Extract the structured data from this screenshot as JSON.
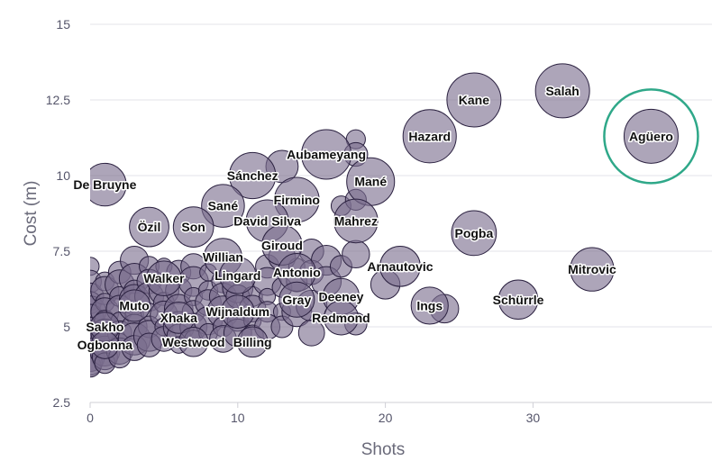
{
  "chart_data": {
    "type": "scatter",
    "title": "",
    "xlabel": "Shots",
    "ylabel": "Cost (m)",
    "xlim": [
      0,
      40
    ],
    "ylim": [
      2.5,
      15
    ],
    "x_ticks": [
      "0",
      "10",
      "20",
      "30"
    ],
    "y_ticks": [
      "2.5",
      "5",
      "7.5",
      "10",
      "12.5",
      "15"
    ],
    "grid": "horizontal",
    "highlight": "Agüero",
    "labeled_points": [
      {
        "name": "Agüero",
        "x": 38,
        "y": 11.3
      },
      {
        "name": "Salah",
        "x": 32,
        "y": 12.8
      },
      {
        "name": "Kane",
        "x": 26,
        "y": 12.5
      },
      {
        "name": "Hazard",
        "x": 23,
        "y": 11.3
      },
      {
        "name": "Aubameyang",
        "x": 16,
        "y": 10.7
      },
      {
        "name": "Mané",
        "x": 19,
        "y": 9.8
      },
      {
        "name": "Sánchez",
        "x": 11,
        "y": 10
      },
      {
        "name": "De Bruyne",
        "x": 1,
        "y": 9.7
      },
      {
        "name": "Sané",
        "x": 9,
        "y": 9
      },
      {
        "name": "Firmino",
        "x": 14,
        "y": 9.2
      },
      {
        "name": "David Silva",
        "x": 12,
        "y": 8.5
      },
      {
        "name": "Mahrez",
        "x": 18,
        "y": 8.5
      },
      {
        "name": "Özil",
        "x": 4,
        "y": 8.3
      },
      {
        "name": "Son",
        "x": 7,
        "y": 8.3
      },
      {
        "name": "Pogba",
        "x": 26,
        "y": 8.1
      },
      {
        "name": "Giroud",
        "x": 13,
        "y": 7.7
      },
      {
        "name": "Willian",
        "x": 9,
        "y": 7.3
      },
      {
        "name": "Arnautovic",
        "x": 21,
        "y": 7
      },
      {
        "name": "Mitrovic",
        "x": 34,
        "y": 6.9
      },
      {
        "name": "Antonio",
        "x": 14,
        "y": 6.8
      },
      {
        "name": "Lingard",
        "x": 10,
        "y": 6.7
      },
      {
        "name": "Walker",
        "x": 5,
        "y": 6.6
      },
      {
        "name": "Deeney",
        "x": 17,
        "y": 6
      },
      {
        "name": "Gray",
        "x": 14,
        "y": 5.9
      },
      {
        "name": "Schürrle",
        "x": 29,
        "y": 5.9
      },
      {
        "name": "Ings",
        "x": 23,
        "y": 5.7
      },
      {
        "name": "Muto",
        "x": 3,
        "y": 5.7
      },
      {
        "name": "Wijnaldum",
        "x": 10,
        "y": 5.5
      },
      {
        "name": "Xhaka",
        "x": 6,
        "y": 5.3
      },
      {
        "name": "Redmond",
        "x": 17,
        "y": 5.3
      },
      {
        "name": "Sakho",
        "x": 1,
        "y": 5
      },
      {
        "name": "Westwood",
        "x": 7,
        "y": 4.5
      },
      {
        "name": "Billing",
        "x": 11,
        "y": 4.5
      },
      {
        "name": "Ogbonna",
        "x": 1,
        "y": 4.4
      }
    ],
    "unlabeled_points": [
      [
        0,
        7
      ],
      [
        0,
        6.5
      ],
      [
        0,
        6
      ],
      [
        0,
        5.8
      ],
      [
        0,
        5.5
      ],
      [
        0,
        5.3
      ],
      [
        0,
        5
      ],
      [
        0,
        4.8
      ],
      [
        0,
        4.5
      ],
      [
        0,
        4.3
      ],
      [
        0,
        4
      ],
      [
        0,
        3.8
      ],
      [
        0,
        3.7
      ],
      [
        1,
        6.5
      ],
      [
        1,
        6.2
      ],
      [
        1,
        5.8
      ],
      [
        1,
        5.5
      ],
      [
        1,
        5.2
      ],
      [
        1,
        4.8
      ],
      [
        1,
        4.5
      ],
      [
        1,
        4.2
      ],
      [
        1,
        4
      ],
      [
        1,
        3.8
      ],
      [
        2,
        6.8
      ],
      [
        2,
        6.4
      ],
      [
        2,
        6
      ],
      [
        2,
        5.6
      ],
      [
        2,
        5.2
      ],
      [
        2,
        4.8
      ],
      [
        2,
        4.5
      ],
      [
        2,
        4.2
      ],
      [
        2,
        4
      ],
      [
        3,
        7.2
      ],
      [
        3,
        6.6
      ],
      [
        3,
        6.2
      ],
      [
        3,
        5.9
      ],
      [
        3,
        5.4
      ],
      [
        3,
        5
      ],
      [
        3,
        4.6
      ],
      [
        3,
        4.3
      ],
      [
        4,
        7
      ],
      [
        4,
        6.5
      ],
      [
        4,
        6
      ],
      [
        4,
        5.5
      ],
      [
        4,
        5
      ],
      [
        4,
        4.7
      ],
      [
        4,
        4.4
      ],
      [
        5,
        7
      ],
      [
        5,
        6.2
      ],
      [
        5,
        5.8
      ],
      [
        5,
        5.4
      ],
      [
        5,
        5
      ],
      [
        5,
        4.6
      ],
      [
        6,
        6.8
      ],
      [
        6,
        6.2
      ],
      [
        6,
        5.6
      ],
      [
        6,
        5
      ],
      [
        6,
        4.7
      ],
      [
        6,
        4.4
      ],
      [
        7,
        7
      ],
      [
        7,
        6.5
      ],
      [
        7,
        6
      ],
      [
        7,
        5.5
      ],
      [
        7,
        5
      ],
      [
        7,
        4.6
      ],
      [
        8,
        6.8
      ],
      [
        8,
        6.2
      ],
      [
        8,
        5.8
      ],
      [
        8,
        5.2
      ],
      [
        8,
        4.8
      ],
      [
        9,
        6.5
      ],
      [
        9,
        6
      ],
      [
        9,
        5.5
      ],
      [
        9,
        5
      ],
      [
        9,
        4.6
      ],
      [
        10,
        6.3
      ],
      [
        10,
        6
      ],
      [
        10,
        5.2
      ],
      [
        10,
        4.8
      ],
      [
        11,
        6
      ],
      [
        11,
        5.6
      ],
      [
        11,
        5.2
      ],
      [
        11,
        4.7
      ],
      [
        12,
        7
      ],
      [
        12,
        6.5
      ],
      [
        12,
        6
      ],
      [
        12,
        5.5
      ],
      [
        12,
        5
      ],
      [
        13,
        10.3
      ],
      [
        13,
        7.3
      ],
      [
        13,
        6.3
      ],
      [
        13,
        5.5
      ],
      [
        13,
        5
      ],
      [
        14,
        7
      ],
      [
        14,
        6.5
      ],
      [
        14,
        5.5
      ],
      [
        15,
        7.5
      ],
      [
        15,
        6.8
      ],
      [
        15,
        5.7
      ],
      [
        15,
        4.8
      ],
      [
        16,
        7.2
      ],
      [
        16,
        6.5
      ],
      [
        17,
        7
      ],
      [
        17,
        9
      ],
      [
        18,
        11.2
      ],
      [
        18,
        10.7
      ],
      [
        18,
        9.2
      ],
      [
        18,
        7.4
      ],
      [
        18,
        5.1
      ],
      [
        20,
        6.4
      ],
      [
        24,
        5.6
      ]
    ]
  }
}
